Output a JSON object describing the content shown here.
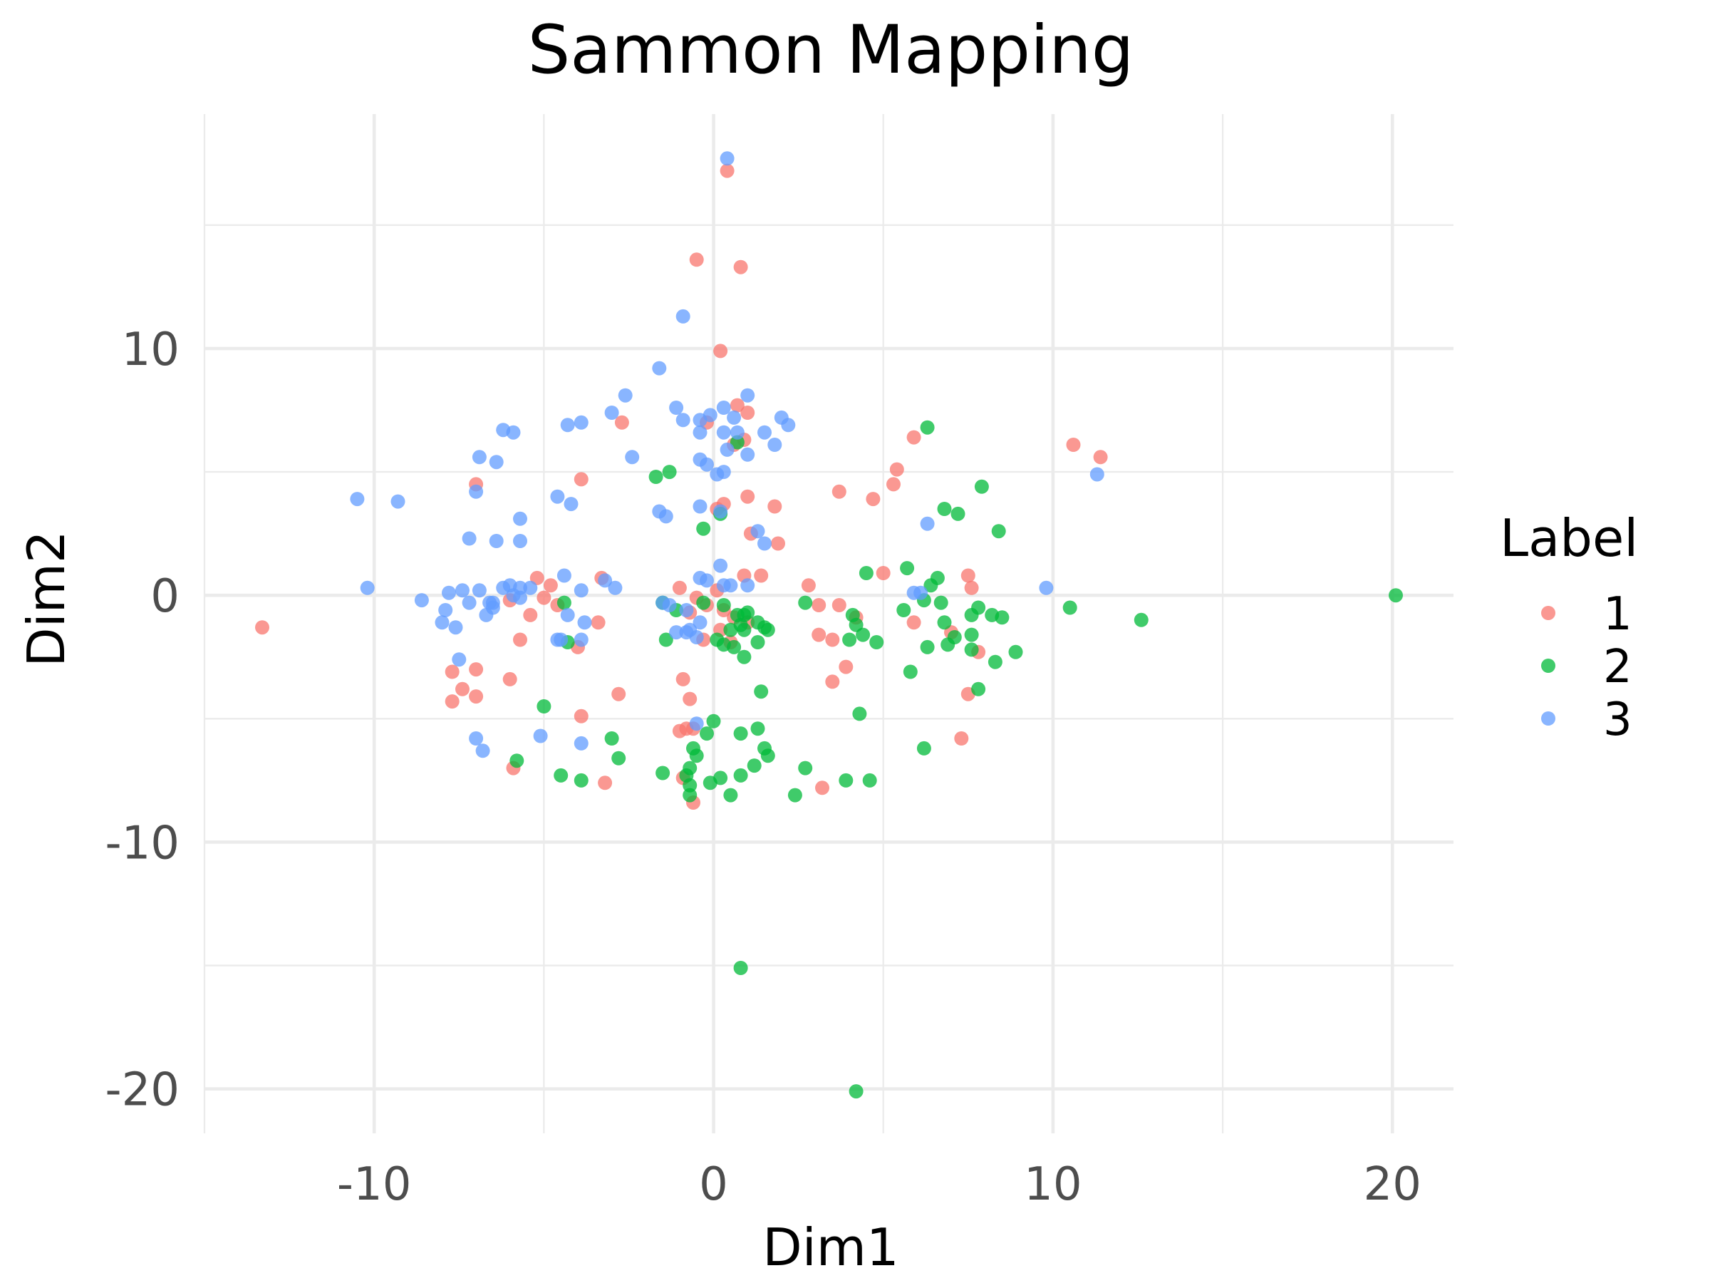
{
  "chart_data": {
    "type": "scatter",
    "title": "Sammon Mapping",
    "xlabel": "Dim1",
    "ylabel": "Dim2",
    "xlim": [
      -15,
      21.8
    ],
    "ylim": [
      -21.8,
      19.5
    ],
    "x_major_ticks": [
      -10,
      0,
      10,
      20
    ],
    "x_minor_ticks": [
      -15,
      -5,
      5,
      15
    ],
    "y_major_ticks": [
      -20,
      -10,
      0,
      10
    ],
    "y_minor_ticks": [
      -15,
      -5,
      5,
      15
    ],
    "x_tick_labels": [
      "-10",
      "0",
      "10",
      "20"
    ],
    "y_tick_labels": [
      "-20",
      "-10",
      "0",
      "10"
    ],
    "grid": true,
    "legend": {
      "title": "Label",
      "placement": "right",
      "entries": [
        {
          "label": "1",
          "color": "#F8766D"
        },
        {
          "label": "2",
          "color": "#00BA38"
        },
        {
          "label": "3",
          "color": "#619CFF"
        }
      ]
    },
    "series": [
      {
        "name": "1",
        "color": "#F8766D",
        "points": [
          [
            0.4,
            17.2
          ],
          [
            -0.5,
            13.6
          ],
          [
            0.8,
            13.3
          ],
          [
            0.2,
            9.9
          ],
          [
            0.7,
            7.7
          ],
          [
            1.0,
            7.4
          ],
          [
            -0.2,
            7.0
          ],
          [
            -2.7,
            7.0
          ],
          [
            0.9,
            6.3
          ],
          [
            0.6,
            6.1
          ],
          [
            -7.0,
            4.5
          ],
          [
            -3.9,
            4.7
          ],
          [
            0.3,
            3.7
          ],
          [
            0.1,
            3.5
          ],
          [
            1.0,
            4.0
          ],
          [
            1.8,
            3.6
          ],
          [
            1.1,
            2.5
          ],
          [
            1.9,
            2.1
          ],
          [
            5.9,
            6.4
          ],
          [
            5.4,
            5.1
          ],
          [
            5.3,
            4.5
          ],
          [
            3.7,
            4.2
          ],
          [
            4.7,
            3.9
          ],
          [
            10.6,
            6.1
          ],
          [
            11.4,
            5.6
          ],
          [
            -13.3,
            -1.3
          ],
          [
            -6.0,
            -0.2
          ],
          [
            -5.2,
            0.7
          ],
          [
            -4.8,
            0.4
          ],
          [
            -5.0,
            -0.1
          ],
          [
            -4.6,
            -0.4
          ],
          [
            -5.4,
            -0.8
          ],
          [
            -5.7,
            -1.8
          ],
          [
            -4.0,
            -2.1
          ],
          [
            -3.3,
            0.7
          ],
          [
            -3.4,
            -1.1
          ],
          [
            -7.7,
            -3.1
          ],
          [
            -7.4,
            -3.8
          ],
          [
            -7.7,
            -4.3
          ],
          [
            -7.0,
            -4.1
          ],
          [
            -7.0,
            -3.0
          ],
          [
            -6.0,
            -3.4
          ],
          [
            -5.9,
            -7.0
          ],
          [
            -3.9,
            -4.9
          ],
          [
            -2.8,
            -4.0
          ],
          [
            -3.2,
            -7.6
          ],
          [
            -1.0,
            0.3
          ],
          [
            -0.5,
            -0.1
          ],
          [
            -0.2,
            -0.4
          ],
          [
            0.1,
            0.2
          ],
          [
            0.3,
            -0.6
          ],
          [
            -0.7,
            -0.7
          ],
          [
            0.9,
            0.8
          ],
          [
            1.4,
            0.8
          ],
          [
            0.6,
            -0.9
          ],
          [
            0.2,
            -1.4
          ],
          [
            1.0,
            -1.1
          ],
          [
            0.5,
            -1.9
          ],
          [
            -0.3,
            -1.8
          ],
          [
            -0.9,
            -3.4
          ],
          [
            -0.7,
            -4.2
          ],
          [
            -1.0,
            -5.5
          ],
          [
            -0.8,
            -5.4
          ],
          [
            -0.6,
            -5.4
          ],
          [
            -0.9,
            -7.4
          ],
          [
            -0.6,
            -8.4
          ],
          [
            2.8,
            0.4
          ],
          [
            3.1,
            -0.4
          ],
          [
            3.7,
            -0.4
          ],
          [
            4.2,
            -0.9
          ],
          [
            3.1,
            -1.6
          ],
          [
            3.5,
            -1.8
          ],
          [
            3.9,
            -2.9
          ],
          [
            3.5,
            -3.5
          ],
          [
            3.2,
            -7.8
          ],
          [
            5.0,
            0.9
          ],
          [
            5.9,
            -1.1
          ],
          [
            7.5,
            0.8
          ],
          [
            7.6,
            0.3
          ],
          [
            7.0,
            -1.5
          ],
          [
            7.8,
            -2.3
          ],
          [
            7.5,
            -4.0
          ],
          [
            7.3,
            -5.8
          ]
        ]
      },
      {
        "name": "2",
        "color": "#00BA38",
        "points": [
          [
            20.1,
            0.0
          ],
          [
            12.6,
            -1.0
          ],
          [
            10.5,
            -0.5
          ],
          [
            6.3,
            6.8
          ],
          [
            7.9,
            4.4
          ],
          [
            6.8,
            3.5
          ],
          [
            7.2,
            3.3
          ],
          [
            8.4,
            2.6
          ],
          [
            4.5,
            0.9
          ],
          [
            5.7,
            1.1
          ],
          [
            6.6,
            0.7
          ],
          [
            6.4,
            0.4
          ],
          [
            6.2,
            -0.2
          ],
          [
            6.7,
            -0.3
          ],
          [
            5.6,
            -0.6
          ],
          [
            7.8,
            -0.5
          ],
          [
            7.6,
            -0.8
          ],
          [
            8.2,
            -0.8
          ],
          [
            8.5,
            -0.9
          ],
          [
            4.1,
            -0.8
          ],
          [
            4.2,
            -1.2
          ],
          [
            4.4,
            -1.6
          ],
          [
            4.0,
            -1.8
          ],
          [
            4.8,
            -1.9
          ],
          [
            6.8,
            -1.1
          ],
          [
            7.1,
            -1.7
          ],
          [
            6.3,
            -2.1
          ],
          [
            6.9,
            -2.0
          ],
          [
            7.6,
            -1.6
          ],
          [
            7.6,
            -2.2
          ],
          [
            8.3,
            -2.7
          ],
          [
            8.9,
            -2.3
          ],
          [
            5.8,
            -3.1
          ],
          [
            7.8,
            -3.8
          ],
          [
            6.2,
            -6.2
          ],
          [
            4.3,
            -4.8
          ],
          [
            3.9,
            -7.5
          ],
          [
            4.6,
            -7.5
          ],
          [
            2.7,
            -7.0
          ],
          [
            2.4,
            -8.1
          ],
          [
            2.7,
            -0.3
          ],
          [
            0.7,
            6.2
          ],
          [
            -0.3,
            2.7
          ],
          [
            0.2,
            3.3
          ],
          [
            -1.7,
            4.8
          ],
          [
            -1.3,
            5.0
          ],
          [
            -1.5,
            -0.3
          ],
          [
            -1.1,
            -0.6
          ],
          [
            -1.4,
            -1.8
          ],
          [
            -0.3,
            -0.3
          ],
          [
            0.3,
            -0.4
          ],
          [
            0.7,
            -0.8
          ],
          [
            0.8,
            -1.2
          ],
          [
            1.0,
            -0.7
          ],
          [
            0.5,
            -1.4
          ],
          [
            0.9,
            -1.4
          ],
          [
            1.3,
            -1.1
          ],
          [
            1.3,
            -1.9
          ],
          [
            0.6,
            -2.1
          ],
          [
            0.1,
            -1.8
          ],
          [
            0.3,
            -2.0
          ],
          [
            0.9,
            -2.5
          ],
          [
            1.5,
            -1.3
          ],
          [
            1.6,
            -1.4
          ],
          [
            0.9,
            -0.8
          ],
          [
            1.4,
            -3.9
          ],
          [
            0.0,
            -5.1
          ],
          [
            -0.2,
            -5.6
          ],
          [
            0.8,
            -5.6
          ],
          [
            1.3,
            -5.4
          ],
          [
            1.5,
            -6.2
          ],
          [
            1.6,
            -6.5
          ],
          [
            1.2,
            -6.9
          ],
          [
            0.8,
            -7.3
          ],
          [
            0.2,
            -7.4
          ],
          [
            -0.1,
            -7.6
          ],
          [
            -0.6,
            -6.2
          ],
          [
            -0.5,
            -6.5
          ],
          [
            -0.7,
            -7.0
          ],
          [
            -0.8,
            -7.3
          ],
          [
            -1.5,
            -7.2
          ],
          [
            -0.7,
            -7.7
          ],
          [
            -0.7,
            -8.1
          ],
          [
            0.5,
            -8.1
          ],
          [
            -4.4,
            -0.3
          ],
          [
            -4.3,
            -1.9
          ],
          [
            -5.0,
            -4.5
          ],
          [
            -5.8,
            -6.7
          ],
          [
            -4.5,
            -7.3
          ],
          [
            -3.9,
            -7.5
          ],
          [
            -2.8,
            -6.6
          ],
          [
            -3.0,
            -5.8
          ],
          [
            0.8,
            -15.1
          ],
          [
            4.2,
            -20.1
          ]
        ]
      },
      {
        "name": "3",
        "color": "#619CFF",
        "points": [
          [
            0.4,
            17.7
          ],
          [
            -0.9,
            11.3
          ],
          [
            -1.6,
            9.2
          ],
          [
            1.0,
            8.1
          ],
          [
            -2.6,
            8.1
          ],
          [
            -1.1,
            7.6
          ],
          [
            0.3,
            7.6
          ],
          [
            -0.1,
            7.3
          ],
          [
            -0.4,
            7.1
          ],
          [
            -0.9,
            7.1
          ],
          [
            0.6,
            7.2
          ],
          [
            2.0,
            7.2
          ],
          [
            2.2,
            6.9
          ],
          [
            -3.0,
            7.4
          ],
          [
            -3.9,
            7.0
          ],
          [
            -4.3,
            6.9
          ],
          [
            -5.9,
            6.6
          ],
          [
            -6.2,
            6.7
          ],
          [
            0.3,
            6.6
          ],
          [
            -0.4,
            6.6
          ],
          [
            0.7,
            6.6
          ],
          [
            1.5,
            6.6
          ],
          [
            1.8,
            6.1
          ],
          [
            0.4,
            5.9
          ],
          [
            1.0,
            5.7
          ],
          [
            -0.4,
            5.5
          ],
          [
            -0.2,
            5.3
          ],
          [
            -2.4,
            5.6
          ],
          [
            -6.9,
            5.6
          ],
          [
            -6.4,
            5.4
          ],
          [
            0.1,
            4.9
          ],
          [
            0.3,
            5.0
          ],
          [
            -4.6,
            4.0
          ],
          [
            -4.2,
            3.7
          ],
          [
            -7.0,
            4.2
          ],
          [
            -10.5,
            3.9
          ],
          [
            -9.3,
            3.8
          ],
          [
            -5.7,
            3.1
          ],
          [
            -0.4,
            3.6
          ],
          [
            -1.6,
            3.4
          ],
          [
            -1.4,
            3.2
          ],
          [
            0.2,
            3.4
          ],
          [
            -7.2,
            2.3
          ],
          [
            -6.4,
            2.2
          ],
          [
            -5.7,
            2.2
          ],
          [
            1.3,
            2.6
          ],
          [
            1.5,
            2.1
          ],
          [
            6.3,
            2.9
          ],
          [
            11.3,
            4.9
          ],
          [
            9.8,
            0.3
          ],
          [
            -10.2,
            0.3
          ],
          [
            -8.6,
            -0.2
          ],
          [
            -7.4,
            0.2
          ],
          [
            -7.8,
            0.1
          ],
          [
            -6.9,
            0.2
          ],
          [
            -6.2,
            0.3
          ],
          [
            -6.0,
            0.4
          ],
          [
            -5.7,
            0.3
          ],
          [
            -5.4,
            0.3
          ],
          [
            -5.9,
            0.0
          ],
          [
            -5.7,
            -0.1
          ],
          [
            -6.5,
            -0.3
          ],
          [
            -6.5,
            -0.5
          ],
          [
            -6.6,
            -0.3
          ],
          [
            -7.2,
            -0.3
          ],
          [
            -7.9,
            -0.6
          ],
          [
            -8.0,
            -1.1
          ],
          [
            -7.6,
            -1.3
          ],
          [
            -6.7,
            -0.8
          ],
          [
            -4.4,
            0.8
          ],
          [
            -3.9,
            0.2
          ],
          [
            -3.2,
            0.6
          ],
          [
            -2.9,
            0.3
          ],
          [
            -4.3,
            -0.8
          ],
          [
            -3.8,
            -1.1
          ],
          [
            -4.5,
            -1.8
          ],
          [
            -4.6,
            -1.8
          ],
          [
            -3.9,
            -1.8
          ],
          [
            -7.5,
            -2.6
          ],
          [
            -0.4,
            0.7
          ],
          [
            -0.2,
            0.6
          ],
          [
            0.2,
            1.2
          ],
          [
            0.3,
            0.4
          ],
          [
            0.5,
            0.4
          ],
          [
            1.0,
            0.4
          ],
          [
            -1.5,
            -0.3
          ],
          [
            -1.3,
            -0.4
          ],
          [
            -0.8,
            -0.6
          ],
          [
            -0.4,
            -1.1
          ],
          [
            -0.7,
            -1.4
          ],
          [
            -0.5,
            -1.7
          ],
          [
            -1.1,
            -1.5
          ],
          [
            -0.8,
            -1.5
          ],
          [
            -0.5,
            -5.2
          ],
          [
            -5.1,
            -5.7
          ],
          [
            -3.9,
            -6.0
          ],
          [
            -7.0,
            -5.8
          ],
          [
            -6.8,
            -6.3
          ],
          [
            5.9,
            0.1
          ],
          [
            6.1,
            0.1
          ]
        ]
      }
    ]
  }
}
